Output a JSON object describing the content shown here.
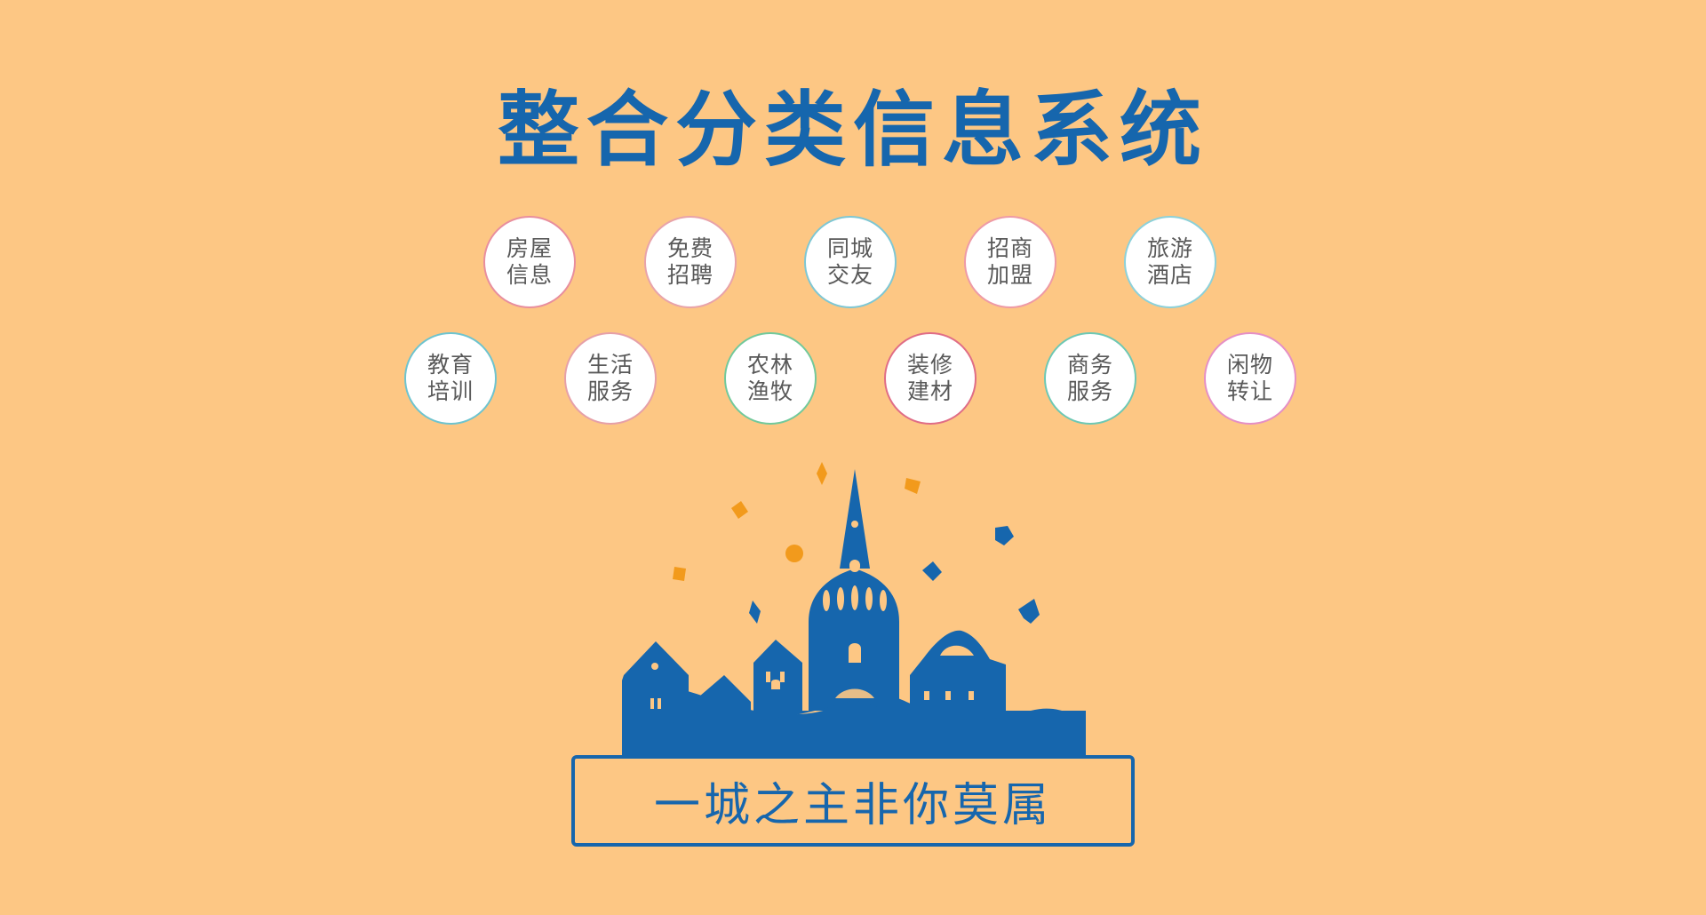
{
  "title": "整合分类信息系统",
  "slogan": "一城之主非你莫属",
  "colors": {
    "background": "#FDC784",
    "primary": "#1666AD",
    "accent": "#F29A1C",
    "bubble_text": "#595959"
  },
  "categories": [
    {
      "line1": "房屋",
      "line2": "信息",
      "ring": "#E88E9E"
    },
    {
      "line1": "免费",
      "line2": "招聘",
      "ring": "#E8A3AA"
    },
    {
      "line1": "同城",
      "line2": "交友",
      "ring": "#7EC7D4"
    },
    {
      "line1": "招商",
      "line2": "加盟",
      "ring": "#EE9AA6"
    },
    {
      "line1": "旅游",
      "line2": "酒店",
      "ring": "#8CD1DA"
    },
    {
      "line1": "教育",
      "line2": "培训",
      "ring": "#6EC4CF"
    },
    {
      "line1": "生活",
      "line2": "服务",
      "ring": "#E6A0A8"
    },
    {
      "line1": "农林",
      "line2": "渔牧",
      "ring": "#72C99B"
    },
    {
      "line1": "装修",
      "line2": "建材",
      "ring": "#E06D86"
    },
    {
      "line1": "商务",
      "line2": "服务",
      "ring": "#6DC8B4"
    },
    {
      "line1": "闲物",
      "line2": "转让",
      "ring": "#E58FC5"
    }
  ]
}
